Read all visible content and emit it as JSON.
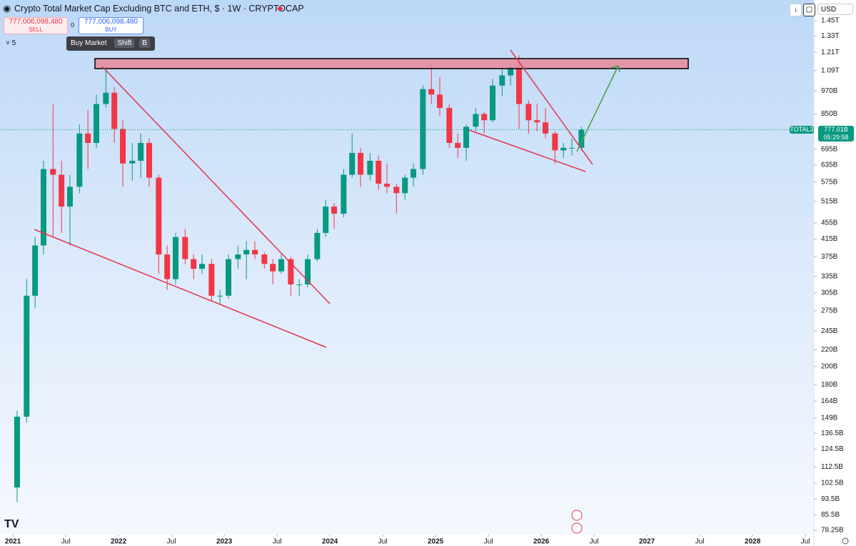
{
  "ui": {
    "symbol_title": "Crypto Total Market Cap Excluding BTC and ETH, $ · 1W · CRYPTOCAP",
    "sell_price": "777,006,098,480",
    "sell": "SELL",
    "spread": "0",
    "buy_price": "777,006,098,480",
    "buy": "BUY",
    "tooltip": "Buy Market",
    "shortcut_key1": "Shift",
    "shortcut_key2": "B",
    "indicator_count": "5",
    "currency": "USD",
    "symbol_tag": "TOTAL3",
    "last_price": "777.01B",
    "countdown": "05:29:58"
  },
  "chart_data": {
    "type": "candlestick",
    "log_scale": true,
    "up_color": "#089981",
    "down_color": "#f23645",
    "xlim": [
      2020.878,
      2028.58
    ],
    "xticks": [
      {
        "value": 2021,
        "label": "2021"
      },
      {
        "value": 2021.5,
        "label": "Jul"
      },
      {
        "value": 2022,
        "label": "2022"
      },
      {
        "value": 2022.5,
        "label": "Jul"
      },
      {
        "value": 2023,
        "label": "2023"
      },
      {
        "value": 2023.5,
        "label": "Jul"
      },
      {
        "value": 2024,
        "label": "2024"
      },
      {
        "value": 2024.5,
        "label": "Jul"
      },
      {
        "value": 2025,
        "label": "2025"
      },
      {
        "value": 2025.5,
        "label": "Jul"
      },
      {
        "value": 2026,
        "label": "2026"
      },
      {
        "value": 2026.5,
        "label": "Jul"
      },
      {
        "value": 2027,
        "label": "2027"
      },
      {
        "value": 2027.5,
        "label": "Jul"
      },
      {
        "value": 2028,
        "label": "2028"
      },
      {
        "value": 2028.5,
        "label": "Jul"
      }
    ],
    "ylim": [
      76.35,
      1633
    ],
    "yticks": [
      {
        "value": 1450,
        "label": "1.45T"
      },
      {
        "value": 1330,
        "label": "1.33T"
      },
      {
        "value": 1210,
        "label": "1.21T"
      },
      {
        "value": 1090,
        "label": "1.09T"
      },
      {
        "value": 970,
        "label": "970B"
      },
      {
        "value": 850,
        "label": "850B"
      },
      {
        "value": 695,
        "label": "695B"
      },
      {
        "value": 635,
        "label": "635B"
      },
      {
        "value": 575,
        "label": "575B"
      },
      {
        "value": 515,
        "label": "515B"
      },
      {
        "value": 455,
        "label": "455B"
      },
      {
        "value": 415,
        "label": "415B"
      },
      {
        "value": 375,
        "label": "375B"
      },
      {
        "value": 335,
        "label": "335B"
      },
      {
        "value": 305,
        "label": "305B"
      },
      {
        "value": 275,
        "label": "275B"
      },
      {
        "value": 245,
        "label": "245B"
      },
      {
        "value": 220,
        "label": "220B"
      },
      {
        "value": 200,
        "label": "200B"
      },
      {
        "value": 180,
        "label": "180B"
      },
      {
        "value": 164,
        "label": "164B"
      },
      {
        "value": 149,
        "label": "149B"
      },
      {
        "value": 136.5,
        "label": "136.5B"
      },
      {
        "value": 124.5,
        "label": "124.5B"
      },
      {
        "value": 112.5,
        "label": "112.5B"
      },
      {
        "value": 102.5,
        "label": "102.5B"
      },
      {
        "value": 93.5,
        "label": "93.5B"
      },
      {
        "value": 85.5,
        "label": "85.5B"
      },
      {
        "value": 78.25,
        "label": "78.25B"
      }
    ],
    "x": [
      2021.04,
      2021.13,
      2021.21,
      2021.29,
      2021.38,
      2021.46,
      2021.54,
      2021.63,
      2021.71,
      2021.79,
      2021.88,
      2021.96,
      2022.04,
      2022.13,
      2022.21,
      2022.29,
      2022.38,
      2022.46,
      2022.54,
      2022.63,
      2022.71,
      2022.79,
      2022.88,
      2022.96,
      2023.04,
      2023.13,
      2023.21,
      2023.29,
      2023.38,
      2023.46,
      2023.54,
      2023.63,
      2023.71,
      2023.79,
      2023.88,
      2023.96,
      2024.04,
      2024.13,
      2024.21,
      2024.29,
      2024.38,
      2024.46,
      2024.54,
      2024.63,
      2024.71,
      2024.79,
      2024.88,
      2024.96,
      2025.04,
      2025.13,
      2025.21,
      2025.29,
      2025.38,
      2025.46,
      2025.54,
      2025.63,
      2025.71,
      2025.79,
      2025.88,
      2025.96,
      2026.04,
      2026.13,
      2026.21,
      2026.29,
      2026.38
    ],
    "open": [
      100,
      150,
      300,
      400,
      620,
      600,
      500,
      560,
      760,
      720,
      900,
      960,
      780,
      640,
      650,
      720,
      590,
      380,
      330,
      420,
      370,
      350,
      360,
      300,
      300,
      370,
      380,
      390,
      380,
      360,
      345,
      370,
      320,
      320,
      370,
      430,
      500,
      480,
      600,
      680,
      600,
      650,
      570,
      560,
      540,
      590,
      620,
      980,
      950,
      880,
      720,
      700,
      790,
      850,
      820,
      1000,
      1060,
      1110,
      900,
      820,
      810,
      760,
      690,
      700,
      700
    ],
    "high": [
      155,
      330,
      420,
      650,
      900,
      650,
      600,
      800,
      870,
      950,
      1090,
      990,
      820,
      720,
      760,
      740,
      600,
      400,
      430,
      440,
      380,
      380,
      370,
      310,
      380,
      400,
      410,
      410,
      385,
      370,
      380,
      375,
      330,
      380,
      440,
      520,
      510,
      620,
      760,
      700,
      680,
      670,
      640,
      570,
      600,
      640,
      1000,
      1150,
      1050,
      900,
      760,
      800,
      880,
      860,
      1040,
      1100,
      1130,
      1190,
      920,
      900,
      880,
      770,
      720,
      740,
      790
    ],
    "low": [
      92,
      145,
      280,
      380,
      420,
      430,
      400,
      540,
      620,
      700,
      880,
      720,
      560,
      580,
      590,
      560,
      340,
      310,
      320,
      360,
      330,
      340,
      290,
      285,
      295,
      350,
      330,
      370,
      350,
      320,
      340,
      300,
      300,
      315,
      365,
      420,
      440,
      470,
      590,
      560,
      580,
      550,
      540,
      480,
      520,
      560,
      600,
      900,
      840,
      700,
      660,
      650,
      770,
      760,
      810,
      940,
      1000,
      780,
      760,
      770,
      740,
      640,
      660,
      670,
      690
    ],
    "close": [
      150,
      300,
      400,
      620,
      600,
      500,
      560,
      760,
      720,
      900,
      960,
      780,
      640,
      650,
      720,
      590,
      380,
      330,
      420,
      370,
      350,
      360,
      300,
      300,
      370,
      380,
      390,
      380,
      360,
      345,
      370,
      320,
      320,
      370,
      430,
      500,
      480,
      600,
      680,
      600,
      650,
      570,
      560,
      540,
      590,
      620,
      980,
      950,
      880,
      720,
      700,
      790,
      850,
      820,
      1000,
      1060,
      1110,
      900,
      820,
      810,
      760,
      690,
      700,
      700,
      777
    ]
  }
}
